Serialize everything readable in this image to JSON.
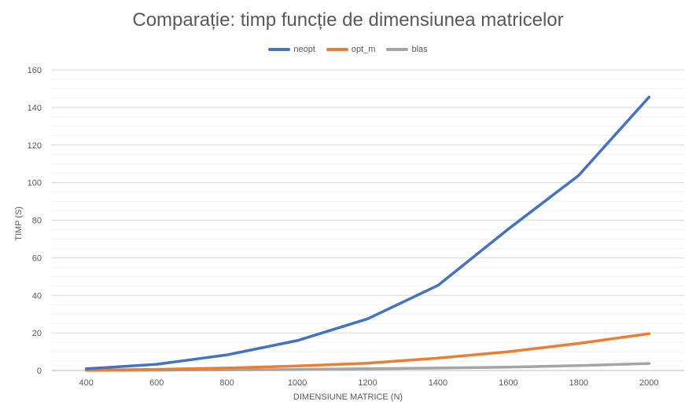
{
  "chart_data": {
    "type": "line",
    "title": "Comparație: timp funcție de dimensiunea matricelor",
    "xlabel": "DIMENSIUNE MATRICE (N)",
    "ylabel": "TIMP (S)",
    "categories": [
      "400",
      "600",
      "800",
      "1000",
      "1200",
      "1400",
      "1600",
      "1800",
      "2000"
    ],
    "ylim": [
      0,
      160
    ],
    "yticks": [
      "0",
      "20",
      "40",
      "60",
      "80",
      "100",
      "120",
      "140",
      "160"
    ],
    "grid": true,
    "legend_position": "top",
    "series": [
      {
        "name": "neopt",
        "color": "#4472C4",
        "values": [
          0.9,
          3.3,
          8.3,
          15.9,
          27.5,
          45.3,
          75.3,
          103.8,
          145.5
        ]
      },
      {
        "name": "opt_m",
        "color": "#ED7D31",
        "values": [
          0.2,
          0.6,
          1.3,
          2.4,
          3.9,
          6.6,
          10.0,
          14.4,
          19.6
        ]
      },
      {
        "name": "blas",
        "color": "#A5A5A5",
        "values": [
          0.05,
          0.15,
          0.3,
          0.55,
          0.9,
          1.3,
          1.8,
          2.6,
          3.7
        ]
      }
    ]
  }
}
